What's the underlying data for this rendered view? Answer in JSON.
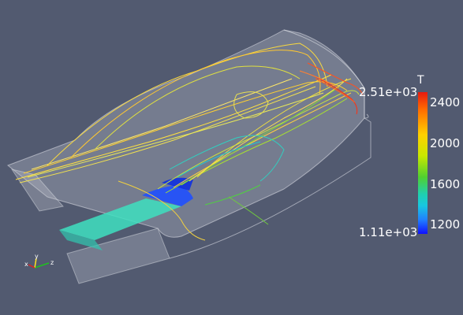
{
  "colorbar": {
    "title": "T",
    "max_label": "2.51e+03",
    "min_label": "1.11e+03",
    "ticks": [
      "2400",
      "2000",
      "1600",
      "1200"
    ],
    "range": [
      1110,
      2510
    ],
    "colors": [
      "#1010ff",
      "#2080ff",
      "#18c8e0",
      "#1fd0b0",
      "#50d030",
      "#c8e800",
      "#ffd000",
      "#ff6a00",
      "#e81a10"
    ]
  },
  "axes": {
    "x": "x",
    "y": "y",
    "z": "z"
  },
  "colors": {
    "background": "#525a70",
    "inlet_jet": "#3ee0c0",
    "housing": "#c8c8c8"
  }
}
